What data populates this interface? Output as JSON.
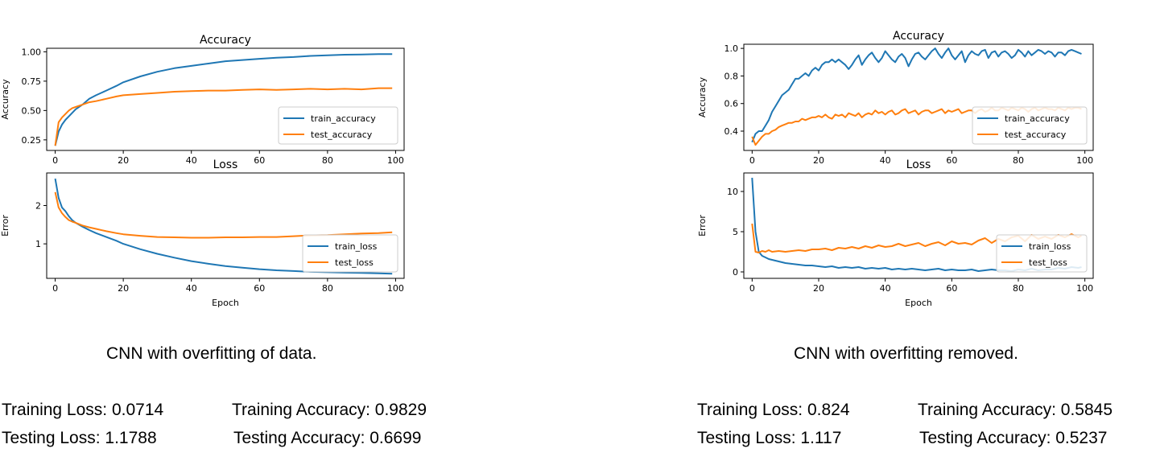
{
  "colors": {
    "train": "#1f77b4",
    "test": "#ff7f0e"
  },
  "panels": [
    {
      "caption": "CNN with overfitting of data.",
      "stats": {
        "train_loss": "Training Loss: 0.0714",
        "train_acc": "Training Accuracy: 0.9829",
        "test_loss": "Testing Loss: 1.1788",
        "test_acc": "Testing Accuracy: 0.6699"
      }
    },
    {
      "caption": "CNN with overfitting removed.",
      "stats": {
        "train_loss": "Training Loss: 0.824",
        "train_acc": "Training Accuracy: 0.5845",
        "test_loss": "Testing Loss: 1.117",
        "test_acc": "Testing Accuracy: 0.5237"
      }
    }
  ],
  "chart_data": [
    {
      "type": "line",
      "title": "Accuracy",
      "xlabel": "",
      "ylabel": "Accuracy",
      "xlim": [
        -2.5,
        102.5
      ],
      "ylim": [
        0.16,
        1.03
      ],
      "xticks": [
        0,
        20,
        40,
        60,
        80,
        100
      ],
      "yticks": [
        0.25,
        0.5,
        0.75,
        1.0
      ],
      "ytick_labels": [
        "0.25",
        "0.50",
        "0.75",
        "1.00"
      ],
      "legend_position": "lower-right",
      "series": [
        {
          "name": "train_accuracy",
          "color": "#1f77b4",
          "x": [
            0,
            1,
            2,
            3,
            4,
            5,
            6,
            8,
            10,
            12,
            15,
            18,
            20,
            25,
            30,
            35,
            40,
            45,
            50,
            55,
            60,
            65,
            70,
            75,
            80,
            85,
            90,
            95,
            99
          ],
          "y": [
            0.2,
            0.32,
            0.38,
            0.42,
            0.45,
            0.48,
            0.51,
            0.55,
            0.6,
            0.63,
            0.67,
            0.71,
            0.74,
            0.79,
            0.83,
            0.86,
            0.88,
            0.9,
            0.92,
            0.93,
            0.94,
            0.95,
            0.955,
            0.965,
            0.97,
            0.975,
            0.977,
            0.98,
            0.98
          ]
        },
        {
          "name": "test_accuracy",
          "color": "#ff7f0e",
          "x": [
            0,
            1,
            2,
            3,
            4,
            5,
            6,
            8,
            10,
            12,
            15,
            18,
            20,
            25,
            30,
            35,
            40,
            45,
            50,
            55,
            60,
            65,
            70,
            75,
            80,
            85,
            90,
            95,
            99
          ],
          "y": [
            0.2,
            0.4,
            0.44,
            0.47,
            0.5,
            0.52,
            0.53,
            0.55,
            0.57,
            0.58,
            0.6,
            0.62,
            0.63,
            0.64,
            0.65,
            0.66,
            0.665,
            0.67,
            0.67,
            0.675,
            0.68,
            0.675,
            0.68,
            0.685,
            0.68,
            0.685,
            0.68,
            0.69,
            0.69
          ]
        }
      ]
    },
    {
      "type": "line",
      "title": "Loss",
      "xlabel": "Epoch",
      "ylabel": "Error",
      "xlim": [
        -2.5,
        102.5
      ],
      "ylim": [
        0.1,
        2.85
      ],
      "xticks": [
        0,
        20,
        40,
        60,
        80,
        100
      ],
      "yticks": [
        1,
        2
      ],
      "ytick_labels": [
        "1",
        "2"
      ],
      "legend_position": "lower-right",
      "series": [
        {
          "name": "train_loss",
          "color": "#1f77b4",
          "x": [
            0,
            1,
            2,
            3,
            4,
            5,
            6,
            8,
            10,
            12,
            15,
            18,
            20,
            25,
            30,
            35,
            40,
            45,
            50,
            55,
            60,
            65,
            70,
            75,
            80,
            85,
            90,
            95,
            99
          ],
          "y": [
            2.7,
            2.2,
            1.95,
            1.85,
            1.72,
            1.62,
            1.55,
            1.45,
            1.36,
            1.28,
            1.18,
            1.08,
            1.0,
            0.86,
            0.74,
            0.64,
            0.55,
            0.48,
            0.42,
            0.38,
            0.34,
            0.31,
            0.29,
            0.27,
            0.26,
            0.25,
            0.24,
            0.23,
            0.22
          ]
        },
        {
          "name": "test_loss",
          "color": "#ff7f0e",
          "x": [
            0,
            1,
            2,
            3,
            4,
            5,
            6,
            8,
            10,
            12,
            15,
            18,
            20,
            25,
            30,
            35,
            40,
            45,
            50,
            55,
            60,
            65,
            70,
            75,
            80,
            85,
            90,
            95,
            99
          ],
          "y": [
            2.35,
            1.95,
            1.8,
            1.7,
            1.62,
            1.58,
            1.55,
            1.48,
            1.43,
            1.39,
            1.33,
            1.28,
            1.25,
            1.21,
            1.18,
            1.17,
            1.16,
            1.16,
            1.17,
            1.17,
            1.18,
            1.18,
            1.2,
            1.22,
            1.23,
            1.25,
            1.27,
            1.28,
            1.3
          ]
        }
      ]
    },
    {
      "type": "line",
      "title": "Accuracy",
      "xlabel": "",
      "ylabel": "Accuracy",
      "xlim": [
        -2.5,
        102.5
      ],
      "ylim": [
        0.26,
        1.03
      ],
      "xticks": [
        0,
        20,
        40,
        60,
        80,
        100
      ],
      "yticks": [
        0.4,
        0.6,
        0.8,
        1.0
      ],
      "ytick_labels": [
        "0.4",
        "0.6",
        "0.8",
        "1.0"
      ],
      "legend_position": "lower-right",
      "series": [
        {
          "name": "train_accuracy",
          "color": "#1f77b4",
          "x": [
            0,
            1,
            2,
            3,
            4,
            5,
            6,
            7,
            8,
            9,
            10,
            11,
            12,
            13,
            14,
            15,
            16,
            17,
            18,
            19,
            20,
            21,
            22,
            23,
            24,
            25,
            26,
            27,
            28,
            29,
            30,
            31,
            32,
            33,
            34,
            35,
            36,
            37,
            38,
            39,
            40,
            41,
            42,
            43,
            44,
            45,
            46,
            47,
            48,
            49,
            50,
            51,
            52,
            53,
            54,
            55,
            56,
            57,
            58,
            59,
            60,
            61,
            62,
            63,
            64,
            65,
            66,
            67,
            68,
            69,
            70,
            71,
            72,
            73,
            74,
            75,
            76,
            77,
            78,
            79,
            80,
            81,
            82,
            83,
            84,
            85,
            86,
            87,
            88,
            89,
            90,
            91,
            92,
            93,
            94,
            95,
            96,
            97,
            98,
            99
          ],
          "y": [
            0.32,
            0.38,
            0.4,
            0.4,
            0.44,
            0.48,
            0.54,
            0.58,
            0.62,
            0.66,
            0.68,
            0.7,
            0.74,
            0.78,
            0.78,
            0.8,
            0.82,
            0.8,
            0.84,
            0.86,
            0.84,
            0.88,
            0.9,
            0.9,
            0.92,
            0.9,
            0.92,
            0.9,
            0.88,
            0.85,
            0.88,
            0.92,
            0.95,
            0.88,
            0.92,
            0.95,
            0.97,
            0.93,
            0.9,
            0.93,
            0.98,
            0.95,
            0.92,
            0.9,
            0.94,
            0.96,
            0.93,
            0.87,
            0.92,
            0.96,
            0.97,
            0.94,
            0.92,
            0.95,
            0.98,
            1.0,
            0.96,
            0.93,
            0.97,
            1.0,
            0.95,
            0.92,
            0.95,
            0.98,
            0.9,
            0.95,
            0.98,
            0.96,
            0.95,
            0.98,
            0.99,
            0.93,
            0.97,
            0.98,
            0.94,
            0.97,
            0.98,
            0.96,
            0.93,
            0.95,
            0.99,
            0.97,
            0.94,
            0.98,
            0.95,
            0.97,
            0.99,
            0.98,
            0.96,
            0.98,
            0.97,
            0.94,
            0.97,
            0.97,
            0.95,
            0.98,
            0.99,
            0.98,
            0.97,
            0.96
          ]
        },
        {
          "name": "test_accuracy",
          "color": "#ff7f0e",
          "x": [
            0,
            1,
            2,
            3,
            4,
            5,
            6,
            7,
            8,
            9,
            10,
            11,
            12,
            13,
            14,
            15,
            16,
            17,
            18,
            19,
            20,
            21,
            22,
            23,
            24,
            25,
            26,
            27,
            28,
            29,
            30,
            31,
            32,
            33,
            34,
            35,
            36,
            37,
            38,
            39,
            40,
            41,
            42,
            43,
            44,
            45,
            46,
            47,
            48,
            49,
            50,
            51,
            52,
            53,
            54,
            55,
            56,
            57,
            58,
            59,
            60,
            61,
            62,
            63,
            64,
            65,
            66,
            67,
            68,
            69,
            70,
            71,
            72,
            73,
            74,
            75,
            76,
            77,
            78,
            79,
            80,
            81,
            82,
            83,
            84,
            85,
            86,
            87,
            88,
            89,
            90,
            91,
            92,
            93,
            94,
            95,
            96,
            97,
            98,
            99
          ],
          "y": [
            0.36,
            0.3,
            0.33,
            0.36,
            0.38,
            0.38,
            0.4,
            0.41,
            0.43,
            0.44,
            0.45,
            0.46,
            0.46,
            0.47,
            0.47,
            0.49,
            0.48,
            0.49,
            0.5,
            0.5,
            0.51,
            0.5,
            0.52,
            0.5,
            0.49,
            0.52,
            0.51,
            0.52,
            0.5,
            0.53,
            0.52,
            0.51,
            0.53,
            0.5,
            0.52,
            0.53,
            0.52,
            0.55,
            0.53,
            0.54,
            0.52,
            0.54,
            0.55,
            0.52,
            0.53,
            0.55,
            0.56,
            0.53,
            0.54,
            0.55,
            0.52,
            0.54,
            0.55,
            0.55,
            0.53,
            0.54,
            0.55,
            0.56,
            0.53,
            0.55,
            0.54,
            0.55,
            0.56,
            0.53,
            0.54,
            0.55,
            0.55,
            0.53,
            0.55,
            0.56,
            0.54,
            0.55,
            0.57,
            0.55,
            0.55,
            0.57,
            0.56,
            0.55,
            0.57,
            0.56,
            0.55,
            0.57,
            0.56,
            0.54,
            0.56,
            0.57,
            0.55,
            0.56,
            0.57,
            0.56,
            0.56,
            0.55,
            0.57,
            0.56,
            0.55,
            0.57,
            0.56,
            0.57,
            0.57,
            0.56
          ]
        }
      ]
    },
    {
      "type": "line",
      "title": "Loss",
      "xlabel": "Epoch",
      "ylabel": "Error",
      "xlim": [
        -2.5,
        102.5
      ],
      "ylim": [
        -0.8,
        12.3
      ],
      "xticks": [
        0,
        20,
        40,
        60,
        80,
        100
      ],
      "yticks": [
        0,
        5,
        10
      ],
      "ytick_labels": [
        "0",
        "5",
        "10"
      ],
      "legend_position": "lower-right",
      "series": [
        {
          "name": "train_loss",
          "color": "#1f77b4",
          "x": [
            0,
            1,
            2,
            3,
            4,
            5,
            6,
            8,
            10,
            12,
            14,
            16,
            18,
            20,
            22,
            24,
            26,
            28,
            30,
            32,
            34,
            36,
            38,
            40,
            42,
            44,
            46,
            48,
            50,
            52,
            54,
            56,
            58,
            60,
            62,
            64,
            66,
            68,
            70,
            72,
            74,
            76,
            78,
            80,
            82,
            84,
            86,
            88,
            90,
            92,
            94,
            96,
            98,
            99
          ],
          "y": [
            11.7,
            5.0,
            2.5,
            2.0,
            1.8,
            1.6,
            1.5,
            1.3,
            1.1,
            1.0,
            0.9,
            0.8,
            0.8,
            0.7,
            0.6,
            0.7,
            0.5,
            0.6,
            0.5,
            0.6,
            0.4,
            0.5,
            0.4,
            0.5,
            0.3,
            0.4,
            0.3,
            0.4,
            0.3,
            0.2,
            0.3,
            0.4,
            0.2,
            0.3,
            0.2,
            0.2,
            0.3,
            0.1,
            0.2,
            0.3,
            0.2,
            0.2,
            0.1,
            0.3,
            0.2,
            0.4,
            0.2,
            0.3,
            0.3,
            0.5,
            0.4,
            0.6,
            0.5,
            0.6
          ]
        },
        {
          "name": "test_loss",
          "color": "#ff7f0e",
          "x": [
            0,
            1,
            2,
            3,
            4,
            5,
            6,
            8,
            10,
            12,
            14,
            16,
            18,
            20,
            22,
            24,
            26,
            28,
            30,
            32,
            34,
            36,
            38,
            40,
            42,
            44,
            46,
            48,
            50,
            52,
            54,
            56,
            58,
            60,
            62,
            64,
            66,
            68,
            70,
            72,
            74,
            76,
            78,
            80,
            82,
            84,
            86,
            88,
            90,
            92,
            94,
            96,
            98,
            99
          ],
          "y": [
            6.0,
            2.5,
            2.4,
            2.6,
            2.5,
            2.7,
            2.5,
            2.6,
            2.5,
            2.6,
            2.7,
            2.6,
            2.8,
            2.8,
            2.9,
            2.7,
            3.0,
            2.9,
            3.1,
            2.9,
            3.2,
            3.0,
            3.3,
            3.1,
            3.2,
            3.5,
            3.2,
            3.4,
            3.6,
            3.2,
            3.5,
            3.7,
            3.3,
            3.8,
            3.5,
            3.6,
            3.4,
            3.9,
            4.2,
            3.6,
            4.1,
            3.8,
            4.3,
            4.5,
            3.8,
            4.6,
            4.1,
            4.4,
            4.1,
            4.6,
            4.3,
            4.7,
            4.3,
            4.5
          ]
        }
      ]
    }
  ]
}
